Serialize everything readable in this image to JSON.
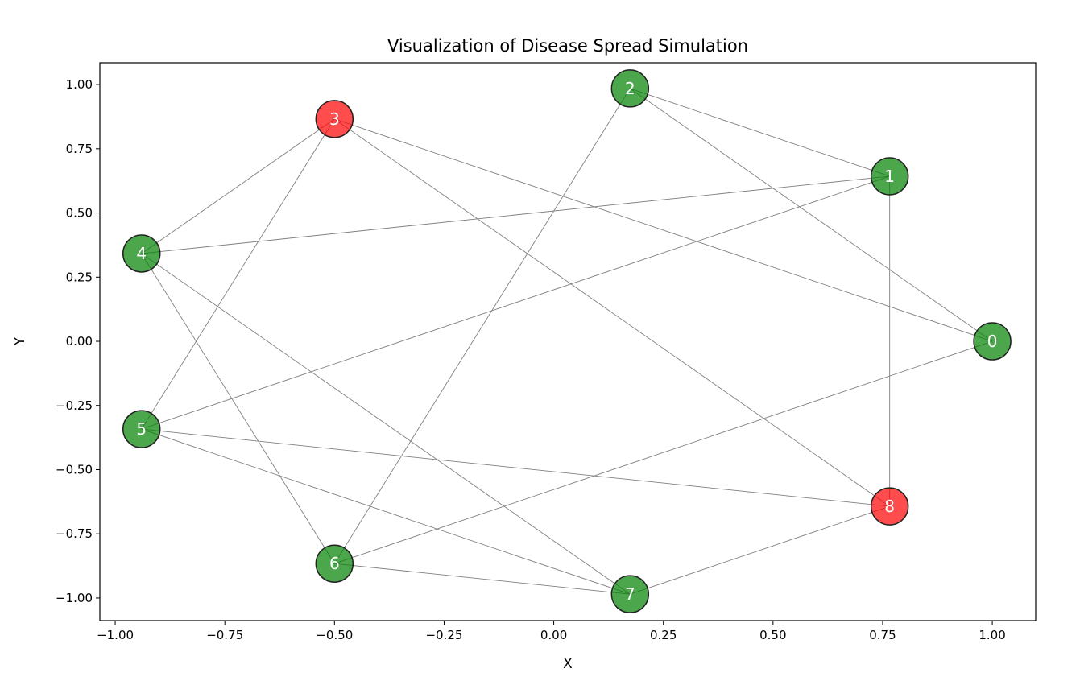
{
  "chart_data": {
    "type": "network",
    "title": "Visualization of Disease Spread Simulation",
    "xlabel": "X",
    "ylabel": "Y",
    "xlim": [
      -1.035,
      1.099
    ],
    "ylim": [
      -1.088,
      1.085
    ],
    "xticks": [
      "−1.00",
      "−0.75",
      "−0.50",
      "−0.25",
      "0.00",
      "0.25",
      "0.50",
      "0.75",
      "1.00"
    ],
    "xtick_values": [
      -1,
      -0.75,
      -0.5,
      -0.25,
      0,
      0.25,
      0.5,
      0.75,
      1
    ],
    "yticks": [
      "−1.00",
      "−0.75",
      "−0.50",
      "−0.25",
      "0.00",
      "0.25",
      "0.50",
      "0.75",
      "1.00"
    ],
    "ytick_values": [
      -1,
      -0.75,
      -0.5,
      -0.25,
      0,
      0.25,
      0.5,
      0.75,
      1
    ],
    "grid": false,
    "colors": {
      "healthy": "#008000",
      "infected": "#ff0000",
      "edge": "#808080",
      "node_border": "#222222"
    },
    "nodes": [
      {
        "id": "0",
        "x": 1.0,
        "y": 0.0,
        "state": "healthy"
      },
      {
        "id": "1",
        "x": 0.766,
        "y": 0.643,
        "state": "healthy"
      },
      {
        "id": "2",
        "x": 0.174,
        "y": 0.985,
        "state": "healthy"
      },
      {
        "id": "3",
        "x": -0.5,
        "y": 0.866,
        "state": "infected"
      },
      {
        "id": "4",
        "x": -0.94,
        "y": 0.342,
        "state": "healthy"
      },
      {
        "id": "5",
        "x": -0.94,
        "y": -0.342,
        "state": "healthy"
      },
      {
        "id": "6",
        "x": -0.5,
        "y": -0.866,
        "state": "healthy"
      },
      {
        "id": "7",
        "x": 0.174,
        "y": -0.985,
        "state": "healthy"
      },
      {
        "id": "8",
        "x": 0.766,
        "y": -0.643,
        "state": "infected"
      }
    ],
    "edges": [
      [
        2,
        1
      ],
      [
        2,
        0
      ],
      [
        2,
        6
      ],
      [
        3,
        4
      ],
      [
        3,
        5
      ],
      [
        3,
        0
      ],
      [
        3,
        8
      ],
      [
        1,
        4
      ],
      [
        1,
        5
      ],
      [
        1,
        8
      ],
      [
        4,
        6
      ],
      [
        4,
        7
      ],
      [
        5,
        8
      ],
      [
        5,
        7
      ],
      [
        6,
        0
      ],
      [
        6,
        7
      ],
      [
        7,
        8
      ]
    ]
  }
}
